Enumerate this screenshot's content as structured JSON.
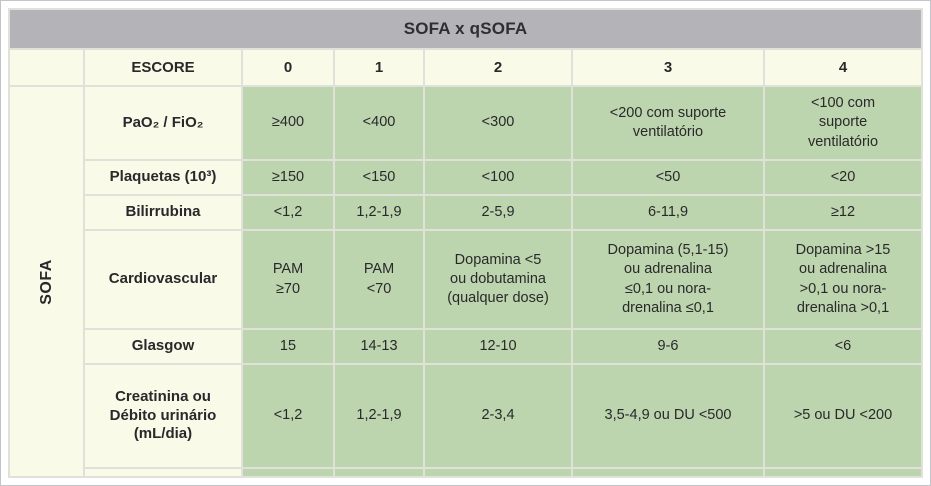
{
  "title": "SOFA x qSOFA",
  "group_label": "SOFA",
  "header": {
    "label": "ESCORE",
    "scores": [
      "0",
      "1",
      "2",
      "3",
      "4"
    ]
  },
  "rows": [
    {
      "label": "PaO₂ / FiO₂",
      "values": [
        "≥400",
        "<400",
        "<300",
        "<200 com suporte\nventilatório",
        "<100 com\nsuporte\nventilatório"
      ]
    },
    {
      "label": "Plaquetas (10³)",
      "values": [
        "≥150",
        "<150",
        "<100",
        "<50",
        "<20"
      ]
    },
    {
      "label": "Bilirrubina",
      "values": [
        "<1,2",
        "1,2-1,9",
        "2-5,9",
        "6-11,9",
        "≥12"
      ]
    },
    {
      "label": "Cardiovascular",
      "values": [
        "PAM\n≥70",
        "PAM\n<70",
        "Dopamina <5\nou dobutamina\n(qualquer dose)",
        "Dopamina (5,1-15)\nou adrenalina\n≤0,1 ou nora-\ndrenalina ≤0,1",
        "Dopamina >15\nou adrenalina\n>0,1 ou nora-\ndrenalina >0,1"
      ]
    },
    {
      "label": "Glasgow",
      "values": [
        "15",
        "14-13",
        "12-10",
        "9-6",
        "<6"
      ]
    },
    {
      "label": "Creatinina ou\nDébito urinário\n(mL/dia)",
      "values": [
        "<1,2",
        "1,2-1,9",
        "2-3,4",
        "3,5-4,9 ou DU <500",
        ">5 ou DU <200"
      ]
    }
  ],
  "colors": {
    "title_bar": "#b4b3b8",
    "label_cell_bg": "#fafae9",
    "value_cell_bg": "#bdd5ae",
    "grid_line": "#e0e1d9",
    "text": "#29292b"
  }
}
